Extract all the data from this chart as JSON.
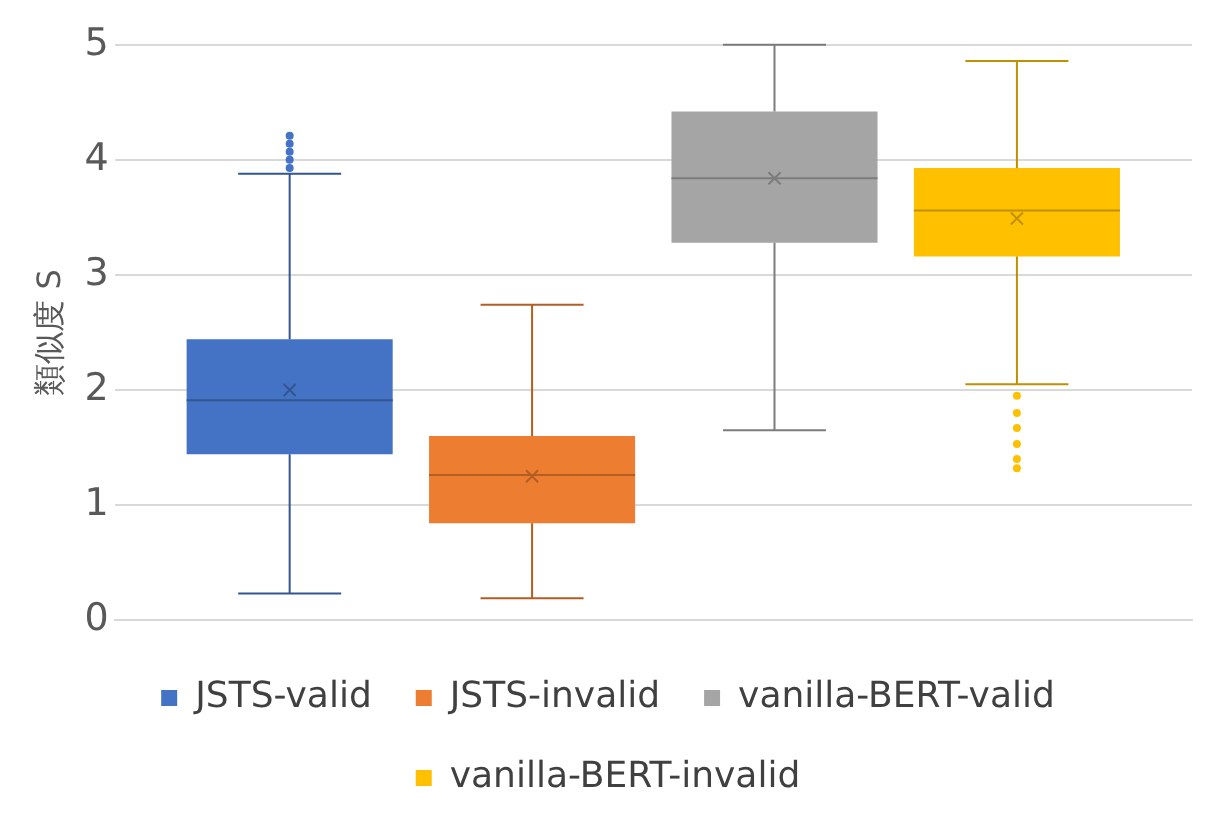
{
  "chart_data": {
    "type": "box",
    "ylabel": "類似度 S",
    "categories": [
      null
    ],
    "ylim": [
      0,
      5
    ],
    "yticks": [
      0,
      1,
      2,
      3,
      4,
      5
    ],
    "grid": "y",
    "legend": "bottom",
    "series": [
      {
        "name": "JSTS-valid",
        "color": "#4472c4",
        "boxes": [
          {
            "low": 0.23,
            "q1": 1.44,
            "median": 1.91,
            "q3": 2.44,
            "high": 3.88,
            "mean": 2.0,
            "outliers": [
              3.93,
              4.0,
              4.07,
              4.14,
              4.21
            ]
          }
        ]
      },
      {
        "name": "JSTS-invalid",
        "color": "#ed7d31",
        "boxes": [
          {
            "low": 0.19,
            "q1": 0.84,
            "median": 1.26,
            "q3": 1.6,
            "high": 2.74,
            "mean": 1.25
          }
        ]
      },
      {
        "name": "vanilla-BERT-valid",
        "color": "#a5a5a5",
        "boxes": [
          {
            "low": 1.65,
            "q1": 3.28,
            "median": 3.84,
            "q3": 4.42,
            "high": 5.0,
            "mean": 3.84
          }
        ]
      },
      {
        "name": "vanilla-BERT-invalid",
        "color": "#ffc000",
        "boxes": [
          {
            "low": 2.05,
            "q1": 3.16,
            "median": 3.56,
            "q3": 3.93,
            "high": 4.86,
            "mean": 3.49,
            "outliers": [
              1.95,
              1.8,
              1.67,
              1.53,
              1.4,
              1.32
            ]
          }
        ]
      }
    ]
  }
}
